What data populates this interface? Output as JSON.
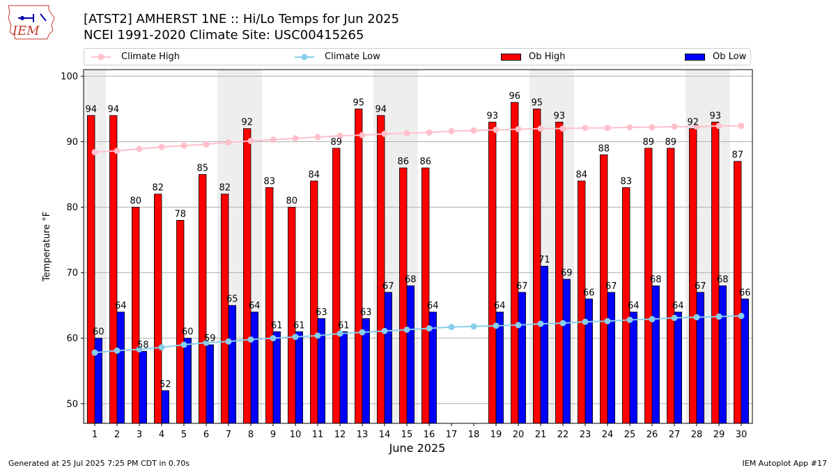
{
  "logo": {
    "text": "IEM"
  },
  "header": {
    "title_line1": "[ATST2] AMHERST 1NE :: Hi/Lo Temps for Jun 2025",
    "title_line2": "NCEI 1991-2020 Climate Site: USC00415265"
  },
  "legend": {
    "climate_high": "Climate High",
    "climate_low": "Climate Low",
    "ob_high": "Ob High",
    "ob_low": "Ob Low"
  },
  "colors": {
    "ob_high": "#ff0000",
    "ob_low": "#0000ff",
    "climate_high": "#ffc0cb",
    "climate_low": "#87ceeb",
    "weekend_shade": "#eeeeee",
    "grid": "#b0b0b0"
  },
  "footer": {
    "left": "Generated at 25 Jul 2025 7:25 PM CDT in 0.70s",
    "right": "IEM Autoplot App #17"
  },
  "chart_data": {
    "type": "bar",
    "xlabel": "June 2025",
    "ylabel": "Temperature °F",
    "ylim": [
      47,
      101
    ],
    "yticks": [
      50,
      60,
      70,
      80,
      90,
      100
    ],
    "grid": "horizontal",
    "legend_position": "top",
    "categories": [
      1,
      2,
      3,
      4,
      5,
      6,
      7,
      8,
      9,
      10,
      11,
      12,
      13,
      14,
      15,
      16,
      17,
      18,
      19,
      20,
      21,
      22,
      23,
      24,
      25,
      26,
      27,
      28,
      29,
      30
    ],
    "weekend_days": [
      1,
      7,
      8,
      14,
      15,
      21,
      22,
      28,
      29
    ],
    "series": [
      {
        "name": "Ob High",
        "type": "bar",
        "values": [
          94,
          94,
          80,
          82,
          78,
          85,
          82,
          92,
          83,
          80,
          84,
          89,
          95,
          94,
          86,
          86,
          null,
          null,
          93,
          96,
          95,
          93,
          84,
          88,
          83,
          89,
          89,
          92,
          93,
          87
        ]
      },
      {
        "name": "Ob Low",
        "type": "bar",
        "values": [
          60,
          64,
          58,
          52,
          60,
          59,
          65,
          64,
          61,
          61,
          63,
          61,
          63,
          67,
          68,
          64,
          null,
          null,
          64,
          67,
          71,
          69,
          66,
          67,
          64,
          68,
          64,
          67,
          68,
          66
        ]
      },
      {
        "name": "Climate High",
        "type": "line",
        "values": [
          88.4,
          88.6,
          88.9,
          89.2,
          89.4,
          89.6,
          89.9,
          90.1,
          90.3,
          90.5,
          90.7,
          90.9,
          91.0,
          91.2,
          91.3,
          91.4,
          91.6,
          91.7,
          91.8,
          91.9,
          92.0,
          92.0,
          92.1,
          92.1,
          92.2,
          92.2,
          92.3,
          92.3,
          92.4,
          92.4
        ]
      },
      {
        "name": "Climate Low",
        "type": "line",
        "values": [
          57.8,
          58.1,
          58.3,
          58.6,
          59.0,
          59.3,
          59.5,
          59.8,
          60.0,
          60.2,
          60.4,
          60.7,
          60.9,
          61.1,
          61.3,
          61.5,
          61.7,
          61.8,
          61.9,
          62.0,
          62.2,
          62.3,
          62.5,
          62.6,
          62.8,
          62.9,
          63.1,
          63.2,
          63.3,
          63.4
        ]
      }
    ]
  }
}
